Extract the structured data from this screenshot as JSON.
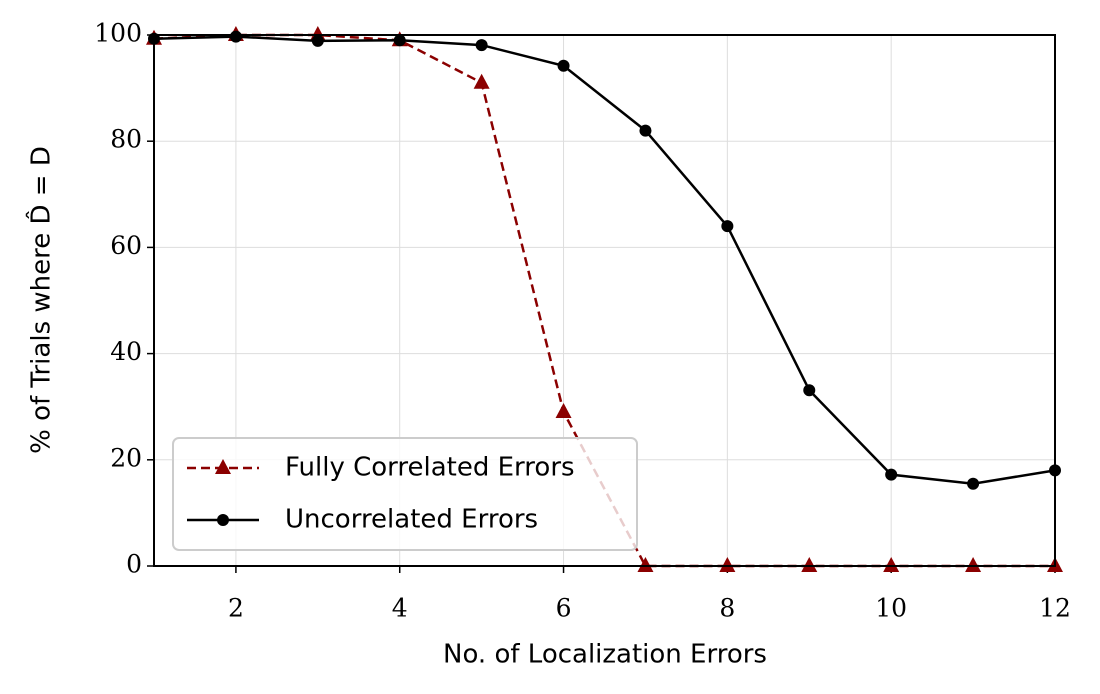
{
  "chart_data": {
    "type": "line",
    "xlabel": "No. of Localization Errors",
    "ylabel": "% of Trials where D̂ = D",
    "x": [
      1,
      2,
      3,
      4,
      5,
      6,
      7,
      8,
      9,
      10,
      11,
      12
    ],
    "series": [
      {
        "name": "Fully Correlated Errors",
        "color": "#8b0000",
        "linestyle": "dashed",
        "marker": "triangle",
        "values": [
          99.3,
          100,
          100,
          99,
          91,
          29,
          0,
          0,
          0,
          0,
          0,
          0
        ]
      },
      {
        "name": "Uncorrelated Errors",
        "color": "#000000",
        "linestyle": "solid",
        "marker": "circle",
        "values": [
          99.3,
          99.7,
          98.9,
          99,
          98.1,
          94.2,
          82,
          64,
          33.1,
          17.2,
          15.5,
          18
        ]
      }
    ],
    "xlim": [
      1,
      12
    ],
    "xticks": [
      2,
      4,
      6,
      8,
      10,
      12
    ],
    "ylim": [
      0,
      100
    ],
    "yticks": [
      0,
      20,
      40,
      60,
      80,
      100
    ],
    "grid": true,
    "legend": "lower left"
  }
}
